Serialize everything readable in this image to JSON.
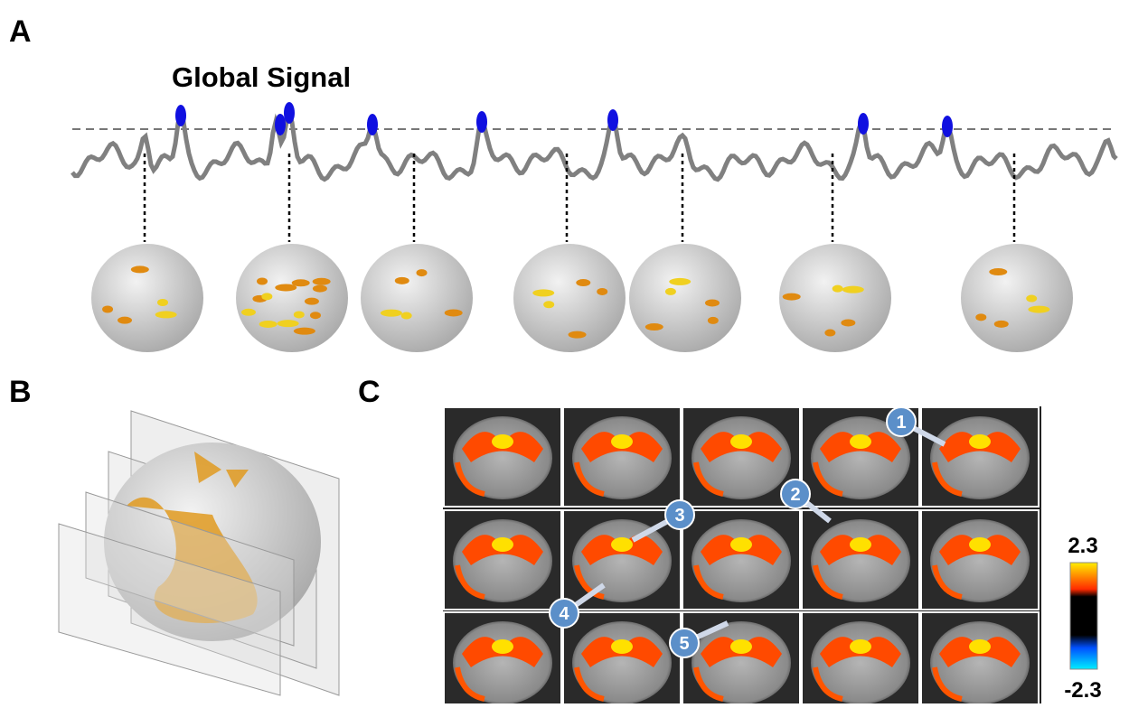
{
  "panels": {
    "a": {
      "label": "A",
      "title": "Global Signal"
    },
    "b": {
      "label": "B"
    },
    "c": {
      "label": "C",
      "markers": [
        "1",
        "2",
        "3",
        "4",
        "5"
      ]
    }
  },
  "colorbar": {
    "max": "2.3",
    "min": "-2.3"
  }
}
